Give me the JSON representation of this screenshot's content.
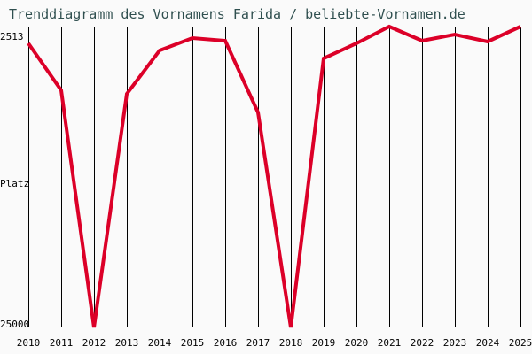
{
  "title": "Trenddiagramm des Vornamens Farida / beliebte-Vornamen.de",
  "colors": {
    "line": "#dc0028",
    "grid": "#000000",
    "title": "#2f4f4f",
    "background": "#fafafa"
  },
  "y_axis": {
    "label": "Platz",
    "top_label": "2513",
    "bottom_label": "25000"
  },
  "chart_data": {
    "type": "line",
    "title": "Trenddiagramm des Vornamens Farida / beliebte-Vornamen.de",
    "xlabel": "",
    "ylabel": "Platz",
    "y_inverted": true,
    "ylim": [
      2513,
      25000
    ],
    "grid": "vertical",
    "categories": [
      "2010",
      "2011",
      "2012",
      "2013",
      "2014",
      "2015",
      "2016",
      "2017",
      "2018",
      "2019",
      "2020",
      "2021",
      "2022",
      "2023",
      "2024",
      "2025"
    ],
    "series": [
      {
        "name": "Farida",
        "values": [
          3770,
          7275,
          25000,
          7540,
          4299,
          3373,
          3571,
          8928,
          25000,
          4894,
          3770,
          2513,
          3571,
          3108,
          3637,
          2513
        ]
      }
    ]
  }
}
